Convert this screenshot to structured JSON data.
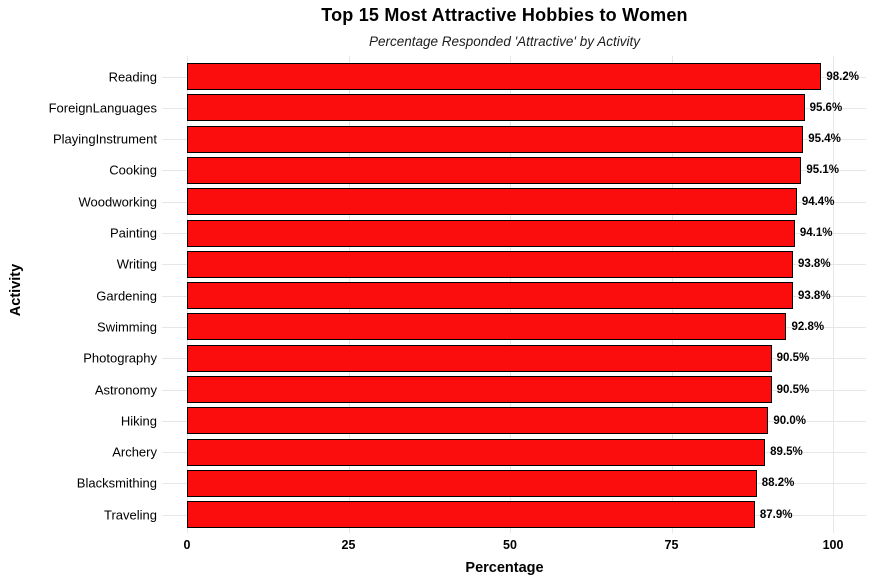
{
  "chart_data": {
    "type": "bar",
    "orientation": "horizontal",
    "title": "Top 15 Most Attractive Hobbies to Women",
    "subtitle": "Percentage Responded 'Attractive' by Activity",
    "xlabel": "Percentage",
    "ylabel": "Activity",
    "categories": [
      "Reading",
      "ForeignLanguages",
      "PlayingInstrument",
      "Cooking",
      "Woodworking",
      "Painting",
      "Writing",
      "Gardening",
      "Swimming",
      "Photography",
      "Astronomy",
      "Hiking",
      "Archery",
      "Blacksmithing",
      "Traveling"
    ],
    "values": [
      98.2,
      95.6,
      95.4,
      95.1,
      94.4,
      94.1,
      93.8,
      93.8,
      92.8,
      90.5,
      90.5,
      90.0,
      89.5,
      88.2,
      87.9
    ],
    "value_labels": [
      "98.2%",
      "95.6%",
      "95.4%",
      "95.1%",
      "94.4%",
      "94.1%",
      "93.8%",
      "93.8%",
      "92.8%",
      "90.5%",
      "90.5%",
      "90.0%",
      "89.5%",
      "88.2%",
      "87.9%"
    ],
    "xlim": [
      0,
      100
    ],
    "xticks": [
      0,
      25,
      50,
      75,
      100
    ],
    "legend": "none",
    "grid": "major-vertical-and-category-horizontal",
    "colors": {
      "bar_fill": "#FC0D0D",
      "bar_border": "#000000",
      "gridline": "#E7E7E7",
      "background": "#FFFFFF",
      "text": "#000000"
    }
  }
}
